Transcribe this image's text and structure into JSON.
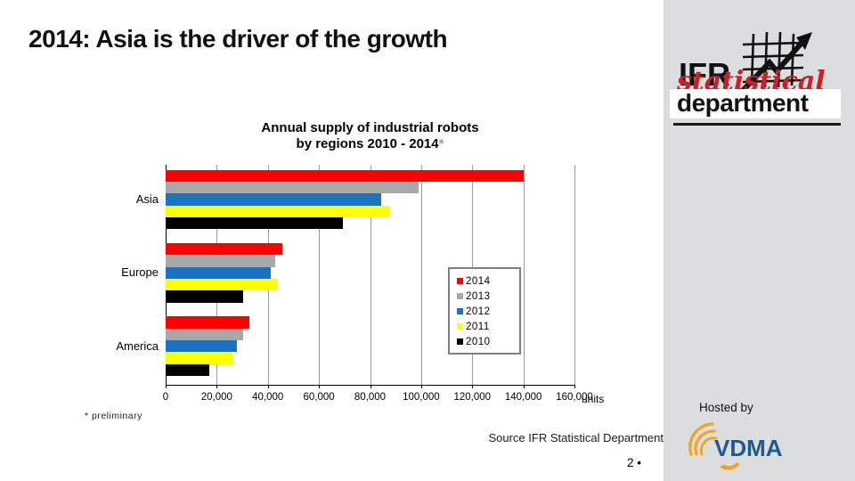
{
  "slide": {
    "title": "2014: Asia is the driver of the growth",
    "footnote": "* preliminary",
    "source": "Source IFR Statistical Department",
    "page_number": "2 •",
    "hosted_by": "Hosted by",
    "side_strip_color": "#dcddde"
  },
  "logo": {
    "ifr": "IFR",
    "statistical": "statistical",
    "department": "department",
    "watermark": "statistical",
    "red": "#cc2027"
  },
  "vdma": {
    "label": "VDMA",
    "blue": "#1e5a8d",
    "orange": "#f5a11c"
  },
  "chart_data": {
    "type": "bar",
    "orientation": "horizontal",
    "title_line1": "Annual supply of industrial robots",
    "title_line2": "by regions 2010 - 2014",
    "title_asterisk": "*",
    "categories": [
      "Asia",
      "Europe",
      "America"
    ],
    "series": [
      {
        "name": "2014",
        "color": "#ff0000",
        "values": [
          140000,
          45500,
          32600
        ]
      },
      {
        "name": "2013",
        "color": "#a8a8a8",
        "values": [
          99000,
          43000,
          30300
        ]
      },
      {
        "name": "2012",
        "color": "#1a72c0",
        "values": [
          84500,
          41000,
          28000
        ]
      },
      {
        "name": "2011",
        "color": "#ffff00",
        "values": [
          88000,
          44000,
          26200
        ]
      },
      {
        "name": "2010",
        "color": "#000000",
        "values": [
          69500,
          30500,
          17000
        ]
      }
    ],
    "xlim": [
      0,
      160000
    ],
    "x_ticks": [
      "0",
      "20,000",
      "40,000",
      "60,000",
      "80,000",
      "100,000",
      "120,000",
      "140,000",
      "160,000"
    ],
    "x_unit": "units",
    "grid": true,
    "legend_position": "center-right"
  }
}
